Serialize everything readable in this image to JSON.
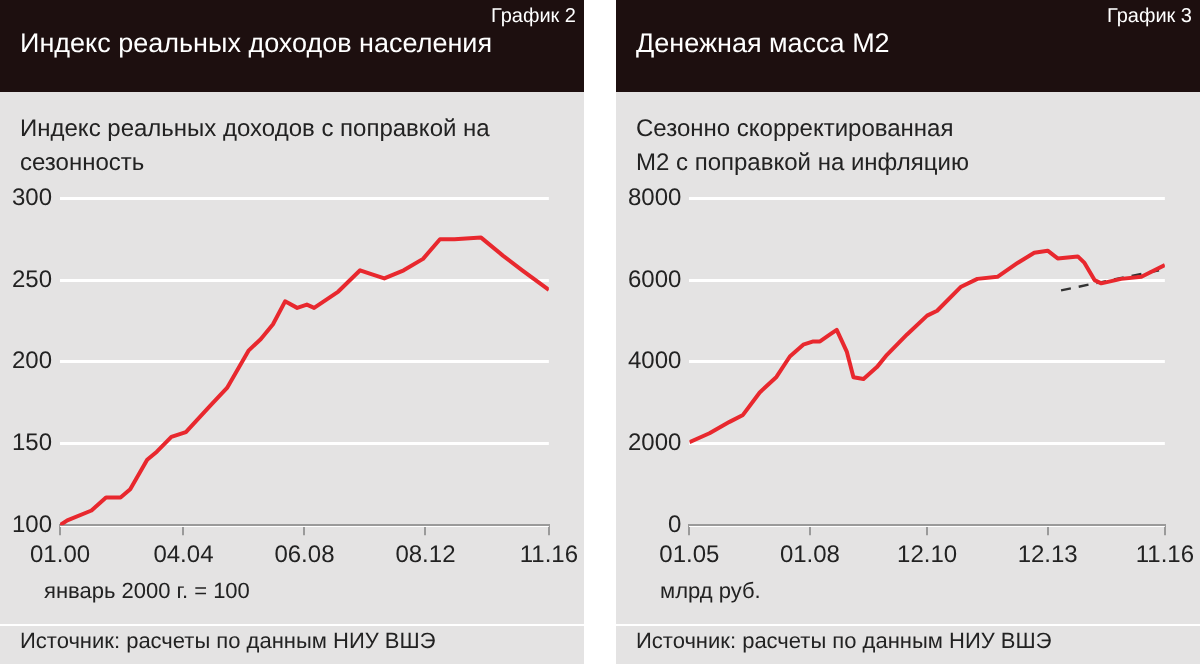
{
  "chart_data": [
    {
      "type": "line",
      "title": "Индекс реальных доходов населения",
      "subtitle": "Индекс реальных доходов с поправкой на сезонность",
      "annotations": [
        "График 2",
        "январь 2000 г. = 100",
        "Источник: расчеты по данным НИУ ВШЭ"
      ],
      "xlim": [
        "2000-01",
        "2016-11"
      ],
      "xticks": [
        {
          "value": "2000-01",
          "label": "01.00"
        },
        {
          "value": "2004-04",
          "label": "04.04"
        },
        {
          "value": "2008-06",
          "label": "06.08"
        },
        {
          "value": "2012-08",
          "label": "08.12"
        },
        {
          "value": "2016-11",
          "label": "11.16"
        }
      ],
      "ylim": [
        100,
        300
      ],
      "yticks": [
        100,
        150,
        200,
        250,
        300
      ],
      "grid": "y",
      "series": [
        {
          "color": "#e8282e",
          "x": [
            "2000-01",
            "2000-04",
            "2001-02",
            "2001-08",
            "2002-02",
            "2002-06",
            "2003-01",
            "2003-05",
            "2003-11",
            "2004-05",
            "2005-03",
            "2005-10",
            "2006-07",
            "2006-12",
            "2007-05",
            "2007-10",
            "2008-03",
            "2008-07",
            "2008-10",
            "2009-08",
            "2010-05",
            "2010-09",
            "2011-03",
            "2011-11",
            "2012-07",
            "2013-02",
            "2013-08",
            "2014-07",
            "2015-04",
            "2015-12",
            "2016-11"
          ],
          "values": [
            100,
            103,
            109,
            117,
            117,
            122,
            140,
            145,
            154,
            157,
            173,
            184,
            207,
            214,
            223,
            237,
            233,
            235,
            233,
            243,
            256,
            254,
            251,
            256,
            263,
            275,
            275,
            276,
            265,
            256,
            244
          ]
        }
      ]
    },
    {
      "type": "line",
      "title": "Денежная масса М2",
      "subtitle": "Сезонно скорректированная М2 с поправкой на инфляцию",
      "annotations": [
        "График 3",
        "млрд руб.",
        "Источник: расчеты по данным НИУ ВШЭ"
      ],
      "xlim": [
        "2005-01",
        "2016-11"
      ],
      "xticks": [
        {
          "value": "2005-01",
          "label": "01.05"
        },
        {
          "value": "2008-01",
          "label": "01.08"
        },
        {
          "value": "2010-12",
          "label": "12.10"
        },
        {
          "value": "2013-12",
          "label": "12.13"
        },
        {
          "value": "2016-11",
          "label": "11.16"
        }
      ],
      "ylim": [
        0,
        8000
      ],
      "yticks": [
        0,
        2000,
        4000,
        6000,
        8000
      ],
      "grid": "y",
      "series": [
        {
          "color": "#e8282e",
          "x": [
            "2005-01",
            "2005-07",
            "2006-01",
            "2006-05",
            "2006-10",
            "2007-03",
            "2007-07",
            "2007-11",
            "2008-02",
            "2008-04",
            "2008-07",
            "2008-09",
            "2008-12",
            "2009-02",
            "2009-05",
            "2009-09",
            "2009-12",
            "2010-06",
            "2010-12",
            "2011-03",
            "2011-10",
            "2012-03",
            "2012-09",
            "2013-03",
            "2013-08",
            "2013-12",
            "2014-03",
            "2014-09",
            "2014-11",
            "2015-02",
            "2015-04",
            "2015-10",
            "2016-04",
            "2016-11"
          ],
          "values": [
            2030,
            2250,
            2530,
            2700,
            3250,
            3630,
            4130,
            4420,
            4500,
            4500,
            4670,
            4780,
            4250,
            3620,
            3580,
            3870,
            4170,
            4670,
            5130,
            5250,
            5830,
            6030,
            6080,
            6420,
            6670,
            6720,
            6530,
            6580,
            6420,
            6000,
            5920,
            6030,
            6080,
            6370
          ]
        },
        {
          "type": "line",
          "color": "#333333",
          "line_style": "dashed",
          "x": [
            "2014-04",
            "2016-11"
          ],
          "values": [
            5750,
            6270
          ]
        }
      ]
    }
  ]
}
